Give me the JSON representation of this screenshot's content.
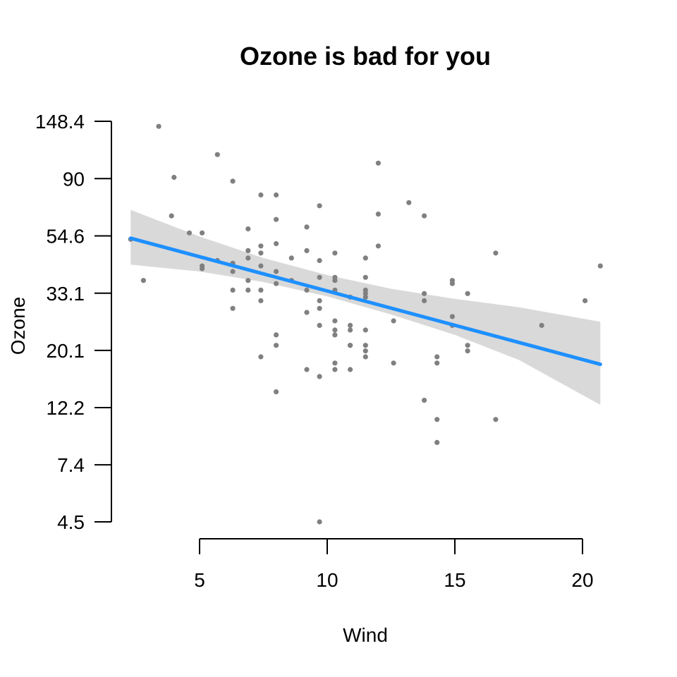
{
  "chart_data": {
    "type": "scatter",
    "title": "Ozone is bad for you",
    "xlabel": "Wind",
    "ylabel": "Ozone",
    "x_ticks": [
      5,
      10,
      15,
      20
    ],
    "y_scale": "log",
    "y_ticks": [
      4.5,
      7.4,
      12.2,
      20.1,
      33.1,
      54.6,
      90,
      148.4
    ],
    "y_tick_labels": [
      "4.5",
      "7.4",
      "12.2",
      "20.1",
      "33.1",
      "54.6",
      "90",
      "148.4"
    ],
    "xlim": [
      2.3,
      20.7
    ],
    "ylim": [
      4.5,
      148.4
    ],
    "grid": false,
    "points": [
      [
        3.4,
        142
      ],
      [
        4.0,
        91
      ],
      [
        5.7,
        111
      ],
      [
        6.3,
        88
      ],
      [
        12.0,
        103
      ],
      [
        13.2,
        73
      ],
      [
        13.8,
        65
      ],
      [
        4.6,
        56
      ],
      [
        5.1,
        56
      ],
      [
        6.9,
        58
      ],
      [
        9.2,
        59
      ],
      [
        9.7,
        71
      ],
      [
        7.4,
        78
      ],
      [
        8.0,
        78
      ],
      [
        8.0,
        63
      ],
      [
        3.9,
        65
      ],
      [
        12.0,
        66
      ],
      [
        11.5,
        45
      ],
      [
        2.3,
        53
      ],
      [
        2.8,
        37
      ],
      [
        5.1,
        41
      ],
      [
        5.1,
        42
      ],
      [
        5.7,
        44
      ],
      [
        6.3,
        40
      ],
      [
        6.3,
        43
      ],
      [
        6.9,
        48
      ],
      [
        6.9,
        45
      ],
      [
        7.4,
        50
      ],
      [
        7.4,
        47
      ],
      [
        7.4,
        42
      ],
      [
        8.0,
        40
      ],
      [
        8.0,
        51
      ],
      [
        8.6,
        45
      ],
      [
        8.6,
        37
      ],
      [
        9.2,
        48
      ],
      [
        9.7,
        44
      ],
      [
        9.7,
        38
      ],
      [
        10.3,
        47
      ],
      [
        10.3,
        38
      ],
      [
        10.3,
        37
      ],
      [
        10.9,
        32
      ],
      [
        11.5,
        38
      ],
      [
        11.5,
        34
      ],
      [
        12.0,
        50
      ],
      [
        6.3,
        34
      ],
      [
        6.3,
        29
      ],
      [
        6.9,
        34
      ],
      [
        7.4,
        34
      ],
      [
        7.4,
        31
      ],
      [
        9.2,
        34
      ],
      [
        9.7,
        31
      ],
      [
        9.7,
        29
      ],
      [
        10.3,
        34
      ],
      [
        10.9,
        25
      ],
      [
        11.5,
        33
      ],
      [
        11.5,
        32
      ],
      [
        12.6,
        26
      ],
      [
        13.8,
        33
      ],
      [
        13.8,
        31
      ],
      [
        14.9,
        36
      ],
      [
        14.9,
        37
      ],
      [
        15.5,
        33
      ],
      [
        16.6,
        47
      ],
      [
        18.4,
        25
      ],
      [
        20.1,
        31
      ],
      [
        20.7,
        42
      ],
      [
        6.9,
        37
      ],
      [
        8.0,
        36
      ],
      [
        9.2,
        28
      ],
      [
        9.7,
        25
      ],
      [
        10.3,
        26
      ],
      [
        10.3,
        24
      ],
      [
        10.3,
        23
      ],
      [
        10.9,
        24
      ],
      [
        11.5,
        24
      ],
      [
        14.9,
        27
      ],
      [
        14.9,
        25
      ],
      [
        7.4,
        19
      ],
      [
        8.0,
        23
      ],
      [
        8.0,
        21
      ],
      [
        9.2,
        17
      ],
      [
        9.7,
        16
      ],
      [
        10.3,
        18
      ],
      [
        10.3,
        17
      ],
      [
        10.9,
        21
      ],
      [
        10.9,
        21
      ],
      [
        10.9,
        17
      ],
      [
        11.5,
        21
      ],
      [
        11.5,
        20
      ],
      [
        11.5,
        19
      ],
      [
        12.6,
        18
      ],
      [
        14.3,
        19
      ],
      [
        14.3,
        18
      ],
      [
        15.5,
        21
      ],
      [
        15.5,
        20
      ],
      [
        8.0,
        14
      ],
      [
        13.8,
        13
      ],
      [
        14.3,
        11
      ],
      [
        14.3,
        9
      ],
      [
        16.6,
        11
      ],
      [
        9.7,
        4.5
      ]
    ],
    "fit_line": {
      "x": [
        2.3,
        20.7
      ],
      "y": [
        53.5,
        17.8
      ]
    },
    "confidence_band": {
      "x": [
        2.3,
        5,
        7.5,
        10,
        12.5,
        15,
        17.5,
        20.7
      ],
      "upper": [
        68.5,
        54.3,
        45.0,
        38.8,
        34.4,
        31.5,
        29.3,
        25.8
      ],
      "lower": [
        42.5,
        40.0,
        36.5,
        32.2,
        27.5,
        23.0,
        18.5,
        12.5
      ]
    },
    "colors": {
      "points": "#808080",
      "fit_line": "#1E90FF",
      "band": "#D9D9D9",
      "axis": "#000000"
    }
  }
}
